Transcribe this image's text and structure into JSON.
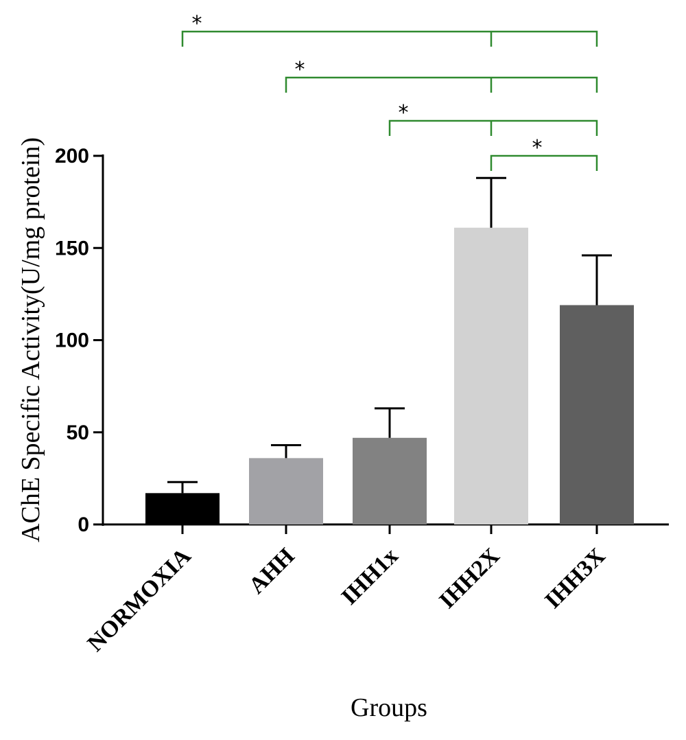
{
  "chart_data": {
    "type": "bar",
    "title": "",
    "xlabel": "Groups",
    "ylabel": "AChE Specific Activity(U/mg protein)",
    "ylim": [
      0,
      200
    ],
    "yticks": [
      0,
      50,
      100,
      150,
      200
    ],
    "ytick_labels": [
      "0",
      "50",
      "100",
      "150",
      "200"
    ],
    "categories": [
      "NORMOXIA",
      "AHH",
      "IHH1x",
      "IHH2X",
      "IHH3X"
    ],
    "values": [
      17,
      36,
      47,
      161,
      119
    ],
    "errors": [
      6,
      7,
      16,
      27,
      27
    ],
    "bar_colors": [
      "#000000",
      "#a2a2a6",
      "#828282",
      "#d2d2d2",
      "#5f5f5f"
    ],
    "grid": false,
    "legend": "none",
    "significance_color": "#2f8a2f",
    "significance": [
      {
        "from": "NORMOXIA",
        "to": "IHH3X",
        "label": "*"
      },
      {
        "from": "AHH",
        "to": "IHH3X",
        "label": "*"
      },
      {
        "from": "IHH1x",
        "to": "IHH3X",
        "label": "*"
      },
      {
        "from": "IHH2X",
        "to": "IHH3X",
        "label": "*"
      }
    ]
  }
}
